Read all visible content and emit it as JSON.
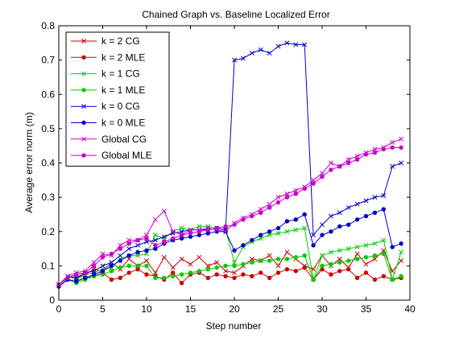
{
  "chart_data": {
    "type": "line",
    "title": "Chained Graph vs. Baseline Localized Error",
    "xlabel": "Step number",
    "ylabel": "Average error norm (m)",
    "xlim": [
      0,
      40
    ],
    "ylim": [
      0,
      0.8
    ],
    "xticks": [
      0,
      5,
      10,
      15,
      20,
      25,
      30,
      35,
      40
    ],
    "yticks": [
      0,
      0.1,
      0.2,
      0.3,
      0.4,
      0.5,
      0.6,
      0.7,
      0.8
    ],
    "grid": false,
    "legend_position": "top-left",
    "x": [
      0,
      1,
      2,
      3,
      4,
      5,
      6,
      7,
      8,
      9,
      10,
      11,
      12,
      13,
      14,
      15,
      16,
      17,
      18,
      19,
      20,
      21,
      22,
      23,
      24,
      25,
      26,
      27,
      28,
      29,
      30,
      31,
      32,
      33,
      34,
      35,
      36,
      37,
      38,
      39
    ],
    "series": [
      {
        "name": "k = 2 CG",
        "color": "#cc0000",
        "marker": "x",
        "values": [
          0.045,
          0.07,
          0.065,
          0.075,
          0.09,
          0.085,
          0.11,
          0.09,
          0.12,
          0.1,
          0.115,
          0.08,
          0.125,
          0.095,
          0.12,
          0.105,
          0.125,
          0.1,
          0.11,
          0.085,
          0.08,
          0.1,
          0.12,
          0.115,
          0.13,
          0.1,
          0.14,
          0.12,
          0.1,
          0.09,
          0.13,
          0.1,
          0.12,
          0.095,
          0.135,
          0.105,
          0.12,
          0.145,
          0.085,
          0.115
        ]
      },
      {
        "name": "k = 2 MLE",
        "color": "#cc0000",
        "marker": "dot",
        "values": [
          0.04,
          0.06,
          0.055,
          0.065,
          0.07,
          0.08,
          0.06,
          0.065,
          0.08,
          0.09,
          0.075,
          0.07,
          0.06,
          0.08,
          0.05,
          0.075,
          0.08,
          0.065,
          0.075,
          0.07,
          0.065,
          0.075,
          0.07,
          0.08,
          0.065,
          0.08,
          0.09,
          0.085,
          0.095,
          0.06,
          0.09,
          0.075,
          0.085,
          0.09,
          0.065,
          0.08,
          0.06,
          0.07,
          0.06,
          0.065
        ]
      },
      {
        "name": "k = 1 CG",
        "color": "#00cc00",
        "marker": "x",
        "values": [
          0.045,
          0.07,
          0.06,
          0.075,
          0.08,
          0.09,
          0.095,
          0.12,
          0.13,
          0.13,
          0.135,
          0.19,
          0.18,
          0.2,
          0.21,
          0.205,
          0.215,
          0.215,
          0.21,
          0.205,
          0.11,
          0.155,
          0.17,
          0.18,
          0.19,
          0.195,
          0.2,
          0.205,
          0.21,
          0.06,
          0.13,
          0.14,
          0.145,
          0.15,
          0.155,
          0.16,
          0.165,
          0.175,
          0.06,
          0.14
        ]
      },
      {
        "name": "k = 1 MLE",
        "color": "#00cc00",
        "marker": "dot",
        "values": [
          0.04,
          0.06,
          0.05,
          0.06,
          0.07,
          0.075,
          0.085,
          0.095,
          0.1,
          0.1,
          0.1,
          0.065,
          0.065,
          0.07,
          0.075,
          0.08,
          0.085,
          0.09,
          0.095,
          0.1,
          0.1,
          0.105,
          0.11,
          0.115,
          0.115,
          0.12,
          0.12,
          0.125,
          0.13,
          0.06,
          0.1,
          0.105,
          0.11,
          0.115,
          0.12,
          0.125,
          0.13,
          0.135,
          0.06,
          0.07
        ]
      },
      {
        "name": "k = 0 CG",
        "color": "#0000cc",
        "marker": "x",
        "values": [
          0.045,
          0.07,
          0.065,
          0.08,
          0.085,
          0.1,
          0.11,
          0.13,
          0.15,
          0.16,
          0.17,
          0.175,
          0.185,
          0.195,
          0.2,
          0.205,
          0.205,
          0.205,
          0.21,
          0.205,
          0.7,
          0.705,
          0.72,
          0.73,
          0.72,
          0.74,
          0.75,
          0.745,
          0.745,
          0.19,
          0.22,
          0.245,
          0.255,
          0.27,
          0.28,
          0.29,
          0.3,
          0.305,
          0.39,
          0.4
        ]
      },
      {
        "name": "k = 0 MLE",
        "color": "#0000cc",
        "marker": "dot",
        "values": [
          0.04,
          0.06,
          0.055,
          0.065,
          0.075,
          0.085,
          0.1,
          0.115,
          0.13,
          0.14,
          0.145,
          0.15,
          0.165,
          0.175,
          0.18,
          0.185,
          0.19,
          0.195,
          0.2,
          0.2,
          0.145,
          0.16,
          0.175,
          0.19,
          0.2,
          0.21,
          0.23,
          0.235,
          0.25,
          0.16,
          0.19,
          0.2,
          0.215,
          0.22,
          0.235,
          0.245,
          0.255,
          0.265,
          0.155,
          0.165
        ]
      },
      {
        "name": "Global CG",
        "color": "#cc00cc",
        "marker": "x",
        "values": [
          0.045,
          0.07,
          0.08,
          0.085,
          0.11,
          0.135,
          0.13,
          0.16,
          0.175,
          0.175,
          0.19,
          0.235,
          0.26,
          0.2,
          0.19,
          0.205,
          0.205,
          0.21,
          0.205,
          0.2,
          0.225,
          0.24,
          0.25,
          0.265,
          0.28,
          0.3,
          0.31,
          0.32,
          0.33,
          0.35,
          0.37,
          0.4,
          0.39,
          0.41,
          0.42,
          0.43,
          0.44,
          0.445,
          0.46,
          0.47
        ]
      },
      {
        "name": "Global MLE",
        "color": "#cc00cc",
        "marker": "dot",
        "values": [
          0.045,
          0.065,
          0.075,
          0.08,
          0.1,
          0.125,
          0.135,
          0.15,
          0.165,
          0.175,
          0.18,
          0.16,
          0.17,
          0.18,
          0.19,
          0.195,
          0.2,
          0.205,
          0.21,
          0.215,
          0.22,
          0.235,
          0.245,
          0.255,
          0.27,
          0.285,
          0.3,
          0.31,
          0.325,
          0.34,
          0.36,
          0.38,
          0.39,
          0.4,
          0.41,
          0.425,
          0.43,
          0.44,
          0.445,
          0.445
        ]
      }
    ]
  }
}
